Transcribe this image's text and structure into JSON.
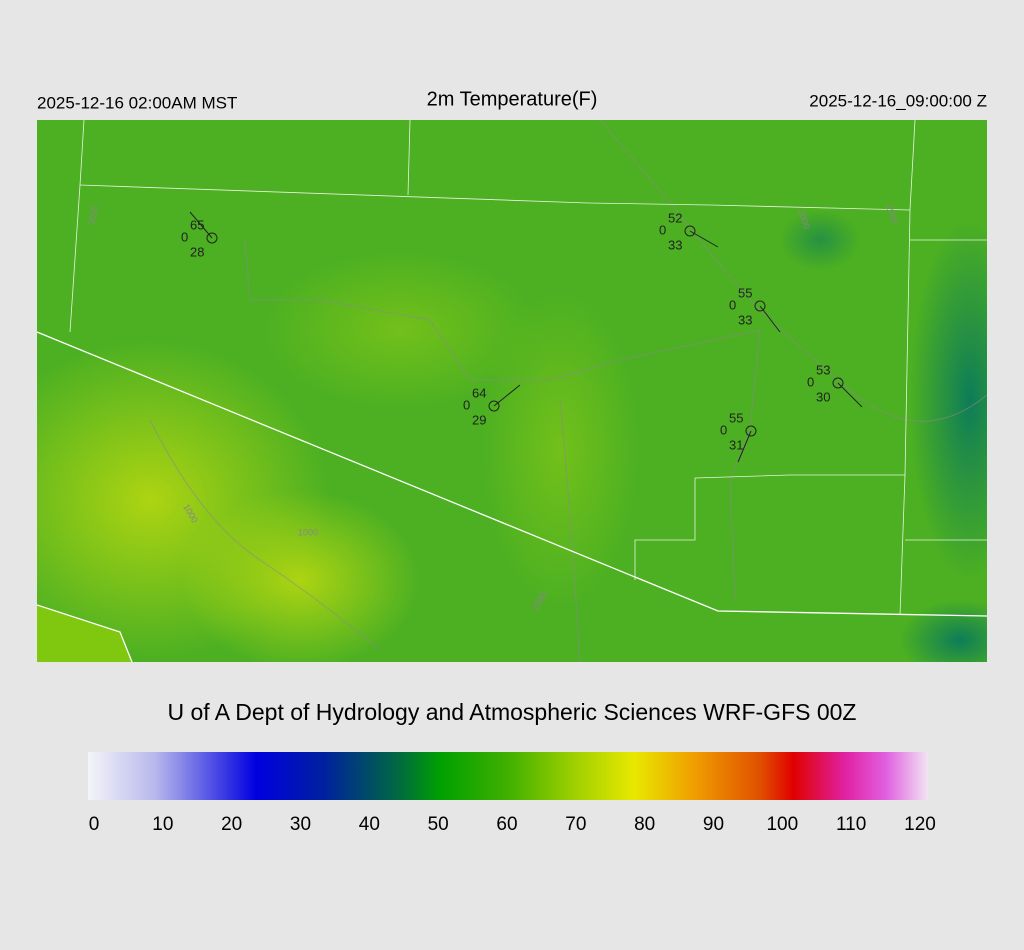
{
  "header": {
    "left": "2025-12-16 02:00AM MST",
    "title": "2m Temperature(F)",
    "right": "2025-12-16_09:00:00 Z"
  },
  "stations": [
    {
      "temperature": "65",
      "middle": "0",
      "dewpoint": "28"
    },
    {
      "temperature": "52",
      "middle": "0",
      "dewpoint": "33"
    },
    {
      "temperature": "55",
      "middle": "0",
      "dewpoint": "33"
    },
    {
      "temperature": "53",
      "middle": "0",
      "dewpoint": "30"
    },
    {
      "temperature": "64",
      "middle": "0",
      "dewpoint": "29"
    },
    {
      "temperature": "55",
      "middle": "0",
      "dewpoint": "31"
    }
  ],
  "contour_labels": [
    "1000",
    "2000",
    "1000",
    "2000",
    "2000",
    "2000"
  ],
  "credit": "U of A Dept of Hydrology and Atmospheric Sciences WRF-GFS 00Z",
  "colorbar": {
    "ticks": [
      0,
      10,
      20,
      30,
      40,
      50,
      60,
      70,
      80,
      90,
      100,
      110,
      120
    ]
  }
}
